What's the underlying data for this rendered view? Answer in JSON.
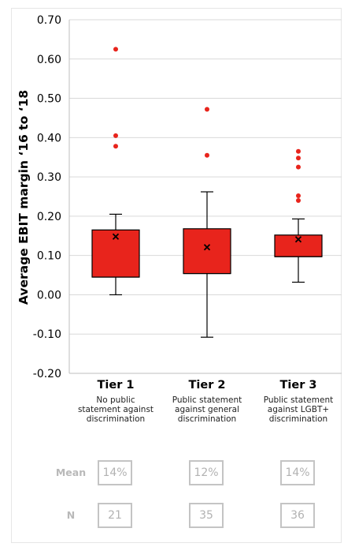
{
  "chart_data": {
    "type": "box",
    "ylabel": "Average EBIT margin ‘16 to ‘18",
    "ylim": [
      -0.2,
      0.7
    ],
    "yticks": [
      "0.70",
      "0.60",
      "0.50",
      "0.40",
      "0.30",
      "0.20",
      "0.10",
      "0.00",
      "-0.10",
      "-0.20"
    ],
    "ytick_values": [
      0.7,
      0.6,
      0.5,
      0.4,
      0.3,
      0.2,
      0.1,
      0.0,
      -0.1,
      -0.2
    ],
    "grid": true,
    "colors": {
      "box": "#e8241c",
      "outlier": "#e8241c",
      "grid": "#d9d9d9",
      "mean_marker": "#000000"
    },
    "groups": [
      {
        "name": "Tier 1",
        "description": "No public statement against discrimination",
        "whisker_low": 0.0,
        "q1": 0.045,
        "median": 0.045,
        "q3": 0.165,
        "whisker_high": 0.205,
        "mean": 0.148,
        "outliers": [
          0.625,
          0.405,
          0.378
        ]
      },
      {
        "name": "Tier 2",
        "description": "Public statement against general discrimination",
        "whisker_low": -0.108,
        "q1": 0.054,
        "median": 0.054,
        "q3": 0.168,
        "whisker_high": 0.262,
        "mean": 0.121,
        "outliers": [
          0.472,
          0.355
        ]
      },
      {
        "name": "Tier 3",
        "description": "Public statement against LGBT+ discrimination",
        "whisker_low": 0.032,
        "q1": 0.097,
        "median": 0.097,
        "q3": 0.152,
        "whisker_high": 0.193,
        "mean": 0.141,
        "outliers": [
          0.365,
          0.348,
          0.325,
          0.252,
          0.24
        ]
      }
    ]
  },
  "tiers": [
    {
      "name": "Tier 1",
      "desc_lines": [
        "No public",
        "statement against",
        "discrimination"
      ]
    },
    {
      "name": "Tier 2",
      "desc_lines": [
        "Public statement",
        "against general",
        "discrimination"
      ]
    },
    {
      "name": "Tier 3",
      "desc_lines": [
        "Public statement",
        "against LGBT+",
        "discrimination"
      ]
    }
  ],
  "table": {
    "mean_label": "Mean",
    "n_label": "N",
    "mean": [
      "14%",
      "12%",
      "14%"
    ],
    "n": [
      "21",
      "35",
      "36"
    ]
  }
}
